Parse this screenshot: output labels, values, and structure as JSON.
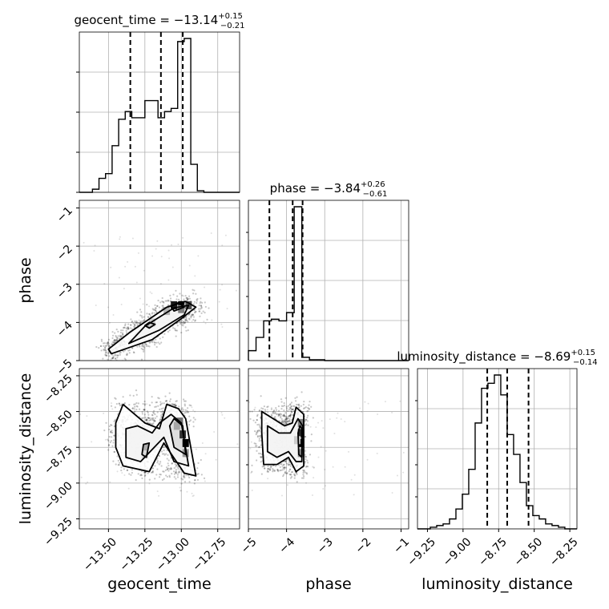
{
  "chart_data": {
    "type": "corner",
    "parameters": [
      "geocent_time",
      "phase",
      "luminosity_distance"
    ],
    "axis_labels": {
      "geocent_time": "geocent_time",
      "phase": "phase",
      "luminosity_distance": "luminosity_distance"
    },
    "titles": [
      {
        "param": "geocent_time",
        "prefix": "geocent_time = ",
        "median": "−13.14",
        "plus": "+0.15",
        "minus": "−0.21"
      },
      {
        "param": "phase",
        "prefix": "phase = ",
        "median": "−3.84",
        "plus": "+0.26",
        "minus": "−0.61"
      },
      {
        "param": "luminosity_distance",
        "prefix": "luminosity_distance = ",
        "median": "−8.69",
        "plus": "+0.15",
        "minus": "−0.14"
      }
    ],
    "ranges": {
      "geocent_time": [
        -13.7,
        -12.6
      ],
      "phase": [
        -5.0,
        -0.8
      ],
      "luminosity_distance": [
        -9.32,
        -8.2
      ]
    },
    "ticks": {
      "geocent_time": [
        {
          "v": -13.5,
          "t": "−13.50"
        },
        {
          "v": -13.25,
          "t": "−13.25"
        },
        {
          "v": -13.0,
          "t": "−13.00"
        },
        {
          "v": -12.75,
          "t": "−12.75"
        }
      ],
      "phase": [
        {
          "v": -5,
          "t": "−5"
        },
        {
          "v": -4,
          "t": "−4"
        },
        {
          "v": -3,
          "t": "−3"
        },
        {
          "v": -2,
          "t": "−2"
        },
        {
          "v": -1,
          "t": "−1"
        }
      ],
      "luminosity_distance": [
        {
          "v": -9.25,
          "t": "−9.25"
        },
        {
          "v": -9.0,
          "t": "−9.00"
        },
        {
          "v": -8.75,
          "t": "−8.75"
        },
        {
          "v": -8.5,
          "t": "−8.50"
        },
        {
          "v": -8.25,
          "t": "−8.25"
        }
      ]
    },
    "quantiles": {
      "geocent_time": [
        -13.35,
        -13.14,
        -12.99
      ],
      "phase": [
        -4.45,
        -3.84,
        -3.58
      ],
      "luminosity_distance": [
        -8.83,
        -8.69,
        -8.54
      ]
    },
    "histograms": {
      "geocent_time": {
        "edges": [
          -13.7,
          -13.655,
          -13.61,
          -13.565,
          -13.52,
          -13.475,
          -13.43,
          -13.385,
          -13.34,
          -13.295,
          -13.25,
          -13.205,
          -13.16,
          -13.115,
          -13.07,
          -13.025,
          -12.98,
          -12.935,
          -12.89,
          -12.845,
          -12.8,
          -12.755,
          -12.71,
          -12.665,
          -12.6
        ],
        "counts": [
          0,
          0,
          0.02,
          0.09,
          0.12,
          0.3,
          0.47,
          0.52,
          0.48,
          0.48,
          0.59,
          0.59,
          0.48,
          0.52,
          0.54,
          0.97,
          0.99,
          0.18,
          0.01,
          0,
          0,
          0,
          0,
          0
        ]
      },
      "phase": {
        "edges": [
          -5.0,
          -4.8,
          -4.6,
          -4.4,
          -4.2,
          -4.0,
          -3.8,
          -3.6,
          -3.4,
          -3.2,
          -3.0,
          -2.8,
          -2.6,
          -2.4,
          -2.2,
          -2.0,
          -1.8,
          -1.6,
          -1.4,
          -1.2,
          -1.0,
          -0.8
        ],
        "counts": [
          0.06,
          0.14,
          0.24,
          0.25,
          0.24,
          0.29,
          0.93,
          0.02,
          0.005,
          0.005,
          0,
          0,
          0,
          0,
          0,
          0,
          0,
          0,
          0,
          0,
          0
        ]
      },
      "luminosity_distance": {
        "edges": [
          -9.32,
          -9.275,
          -9.23,
          -9.185,
          -9.14,
          -9.095,
          -9.05,
          -9.005,
          -8.96,
          -8.915,
          -8.87,
          -8.825,
          -8.78,
          -8.735,
          -8.69,
          -8.645,
          -8.6,
          -8.555,
          -8.51,
          -8.465,
          -8.42,
          -8.375,
          -8.33,
          -8.285,
          -8.24,
          -8.2
        ],
        "counts": [
          0,
          0,
          0.01,
          0.02,
          0.03,
          0.06,
          0.12,
          0.21,
          0.36,
          0.64,
          0.85,
          0.88,
          0.93,
          0.81,
          0.57,
          0.45,
          0.28,
          0.14,
          0.08,
          0.06,
          0.03,
          0.02,
          0.01,
          0,
          0
        ]
      }
    },
    "contours": {
      "phase_vs_geocent_time": [
        [
          [
            -13.48,
            -4.82
          ],
          [
            -13.2,
            -4.45
          ],
          [
            -13.0,
            -3.9
          ],
          [
            -12.9,
            -3.6
          ],
          [
            -12.97,
            -3.45
          ],
          [
            -13.1,
            -3.6
          ],
          [
            -13.35,
            -4.25
          ],
          [
            -13.5,
            -4.7
          ],
          [
            -13.48,
            -4.82
          ]
        ],
        [
          [
            -13.36,
            -4.55
          ],
          [
            -13.15,
            -4.2
          ],
          [
            -12.98,
            -3.8
          ],
          [
            -12.95,
            -3.55
          ],
          [
            -13.05,
            -3.62
          ],
          [
            -13.25,
            -4.1
          ],
          [
            -13.36,
            -4.55
          ]
        ],
        [
          [
            -13.05,
            -3.7
          ],
          [
            -12.98,
            -3.6
          ],
          [
            -13.02,
            -3.48
          ],
          [
            -13.07,
            -3.58
          ],
          [
            -13.05,
            -3.7
          ]
        ],
        [
          [
            -13.22,
            -4.15
          ],
          [
            -13.18,
            -4.05
          ],
          [
            -13.22,
            -4.0
          ],
          [
            -13.25,
            -4.08
          ],
          [
            -13.22,
            -4.15
          ]
        ]
      ],
      "luminosity_distance_vs_geocent_time": [
        [
          [
            -13.45,
            -8.58
          ],
          [
            -13.4,
            -8.45
          ],
          [
            -13.25,
            -8.58
          ],
          [
            -13.15,
            -8.62
          ],
          [
            -13.1,
            -8.45
          ],
          [
            -13.02,
            -8.48
          ],
          [
            -12.97,
            -8.55
          ],
          [
            -12.9,
            -8.95
          ],
          [
            -12.98,
            -8.93
          ],
          [
            -13.12,
            -8.72
          ],
          [
            -13.22,
            -8.92
          ],
          [
            -13.4,
            -8.88
          ],
          [
            -13.45,
            -8.75
          ],
          [
            -13.45,
            -8.58
          ]
        ],
        [
          [
            -13.38,
            -8.62
          ],
          [
            -13.3,
            -8.6
          ],
          [
            -13.2,
            -8.65
          ],
          [
            -13.15,
            -8.58
          ],
          [
            -13.07,
            -8.52
          ],
          [
            -13.0,
            -8.58
          ],
          [
            -12.95,
            -8.88
          ],
          [
            -13.05,
            -8.85
          ],
          [
            -13.12,
            -8.68
          ],
          [
            -13.28,
            -8.85
          ],
          [
            -13.38,
            -8.82
          ],
          [
            -13.38,
            -8.62
          ]
        ],
        [
          [
            -13.05,
            -8.55
          ],
          [
            -12.99,
            -8.6
          ],
          [
            -12.97,
            -8.8
          ],
          [
            -13.05,
            -8.75
          ],
          [
            -13.08,
            -8.6
          ],
          [
            -13.05,
            -8.55
          ]
        ],
        [
          [
            -13.26,
            -8.73
          ],
          [
            -13.22,
            -8.72
          ],
          [
            -13.24,
            -8.82
          ],
          [
            -13.27,
            -8.8
          ],
          [
            -13.26,
            -8.73
          ]
        ]
      ],
      "luminosity_distance_vs_phase": [
        [
          [
            -4.65,
            -8.5
          ],
          [
            -4.35,
            -8.55
          ],
          [
            -4.05,
            -8.6
          ],
          [
            -3.85,
            -8.58
          ],
          [
            -3.75,
            -8.47
          ],
          [
            -3.55,
            -8.52
          ],
          [
            -3.55,
            -8.88
          ],
          [
            -3.75,
            -8.92
          ],
          [
            -3.95,
            -8.82
          ],
          [
            -4.25,
            -8.87
          ],
          [
            -4.6,
            -8.87
          ],
          [
            -4.65,
            -8.65
          ],
          [
            -4.65,
            -8.5
          ]
        ],
        [
          [
            -4.5,
            -8.6
          ],
          [
            -4.2,
            -8.65
          ],
          [
            -3.9,
            -8.65
          ],
          [
            -3.7,
            -8.55
          ],
          [
            -3.58,
            -8.6
          ],
          [
            -3.6,
            -8.85
          ],
          [
            -3.75,
            -8.85
          ],
          [
            -3.95,
            -8.78
          ],
          [
            -4.25,
            -8.82
          ],
          [
            -4.5,
            -8.78
          ],
          [
            -4.5,
            -8.6
          ]
        ],
        [
          [
            -3.65,
            -8.6
          ],
          [
            -3.6,
            -8.62
          ],
          [
            -3.6,
            -8.82
          ],
          [
            -3.68,
            -8.8
          ],
          [
            -3.7,
            -8.65
          ],
          [
            -3.65,
            -8.6
          ]
        ]
      ]
    },
    "density_cells": {
      "phase_vs_geocent_time": [
        {
          "x": -13.0,
          "y": -3.55,
          "d": 1.0
        },
        {
          "x": -13.05,
          "y": -3.55,
          "d": 0.9
        },
        {
          "x": -12.95,
          "y": -3.55,
          "d": 0.7
        },
        {
          "x": -13.0,
          "y": -3.65,
          "d": 0.5
        },
        {
          "x": -13.1,
          "y": -3.7,
          "d": 0.3
        },
        {
          "x": -13.2,
          "y": -4.0,
          "d": 0.2
        }
      ],
      "luminosity_distance_vs_geocent_time": [
        {
          "x": -12.97,
          "y": -8.72,
          "d": 1.0
        },
        {
          "x": -12.99,
          "y": -8.66,
          "d": 0.8
        },
        {
          "x": -13.01,
          "y": -8.57,
          "d": 0.55
        },
        {
          "x": -13.03,
          "y": -8.6,
          "d": 0.35
        },
        {
          "x": -12.97,
          "y": -8.79,
          "d": 0.4
        },
        {
          "x": -13.25,
          "y": -8.8,
          "d": 0.15
        }
      ],
      "luminosity_distance_vs_phase": [
        {
          "x": -3.62,
          "y": -8.72,
          "d": 1.0
        },
        {
          "x": -3.62,
          "y": -8.65,
          "d": 0.85
        },
        {
          "x": -3.62,
          "y": -8.58,
          "d": 0.5
        },
        {
          "x": -3.62,
          "y": -8.79,
          "d": 0.45
        },
        {
          "x": -3.72,
          "y": -8.7,
          "d": 0.2
        }
      ]
    },
    "grid": true
  }
}
